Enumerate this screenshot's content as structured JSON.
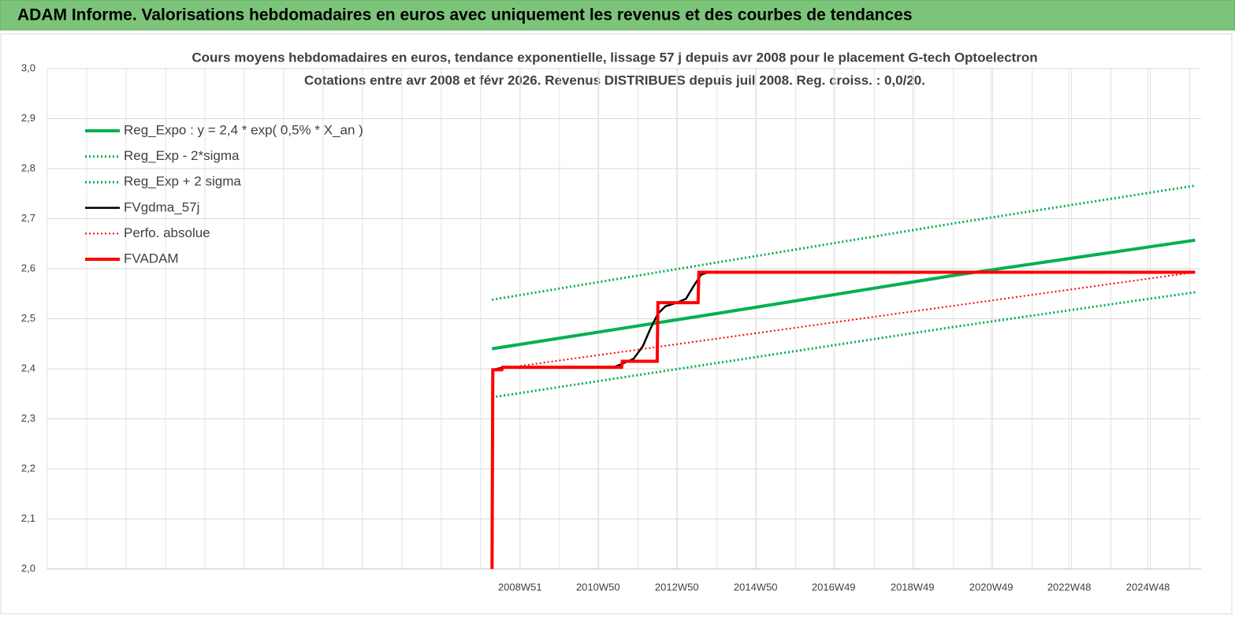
{
  "header": {
    "title": "ADAM Informe. Valorisations hebdomadaires en euros avec uniquement les revenus et des courbes de tendances"
  },
  "chart_data": {
    "type": "line",
    "title": "Cours moyens hebdomadaires en euros, tendance exponentielle, lissage 57 j depuis avr 2008 pour le placement G-tech Optoelectron",
    "subtitle": "Cotations entre avr 2008 et févr 2026. Revenus DISTRIBUES depuis juil 2008. Reg. croiss. : 0,0/20.",
    "xlim": [
      "1996W51",
      "2026W14"
    ],
    "xticks": [
      "2008W51",
      "2010W50",
      "2012W50",
      "2014W50",
      "2016W49",
      "2018W49",
      "2020W49",
      "2022W48",
      "2024W48"
    ],
    "ylim": [
      2.0,
      3.0
    ],
    "yticks": [
      {
        "value": 2.0,
        "label": "2,0"
      },
      {
        "value": 2.1,
        "label": "2,1"
      },
      {
        "value": 2.2,
        "label": "2,2"
      },
      {
        "value": 2.3,
        "label": "2,3"
      },
      {
        "value": 2.4,
        "label": "2,4"
      },
      {
        "value": 2.5,
        "label": "2,5"
      },
      {
        "value": 2.6,
        "label": "2,6"
      },
      {
        "value": 2.7,
        "label": "2,7"
      },
      {
        "value": 2.8,
        "label": "2,8"
      },
      {
        "value": 2.9,
        "label": "2,9"
      },
      {
        "value": 3.0,
        "label": "3,0"
      }
    ],
    "grid": true,
    "legend": "upper left",
    "series": [
      {
        "name": "Reg_Expo : y = 2,4 * exp( 0,5% *  X_an )",
        "color": "#00b050",
        "line_style": "solid",
        "line_width": 4,
        "x": [
          "2008W14",
          "2014W01",
          "2020W01",
          "2026W06"
        ],
        "values": [
          2.44,
          2.511,
          2.587,
          2.657
        ]
      },
      {
        "name": "Reg_Exp - 2*sigma",
        "color": "#00b050",
        "line_style": "dotted",
        "line_width": 3,
        "x": [
          "2008W14",
          "2014W01",
          "2020W01",
          "2026W06"
        ],
        "values": [
          2.343,
          2.412,
          2.484,
          2.553
        ]
      },
      {
        "name": "Reg_Exp + 2 sigma",
        "color": "#00b050",
        "line_style": "dotted",
        "line_width": 3,
        "x": [
          "2008W14",
          "2014W01",
          "2020W01",
          "2026W06"
        ],
        "values": [
          2.538,
          2.613,
          2.691,
          2.766
        ]
      },
      {
        "name": "FVgdma_57j",
        "color": "#000000",
        "line_style": "solid",
        "line_width": 2.5,
        "x": [
          "2008W15",
          "2008W30",
          "2011W20",
          "2011W30",
          "2011W45",
          "2012W05",
          "2012W15",
          "2012W25",
          "2012W35",
          "2012W50",
          "2013W10",
          "2013W20",
          "2013W30",
          "2013W40",
          "2026W06"
        ],
        "values": [
          2.398,
          2.403,
          2.404,
          2.41,
          2.42,
          2.445,
          2.48,
          2.51,
          2.525,
          2.532,
          2.54,
          2.565,
          2.588,
          2.593,
          2.593
        ]
      },
      {
        "name": "Perfo. absolue",
        "color": "#ff0000",
        "line_style": "dotted",
        "line_width": 2,
        "x": [
          "2008W15",
          "2026W06"
        ],
        "values": [
          2.398,
          2.593
        ]
      },
      {
        "name": "FVADAM",
        "color": "#ff0000",
        "line_style": "solid",
        "line_width": 4,
        "x": [
          "2008W14",
          "2008W15",
          "2008W27",
          "2008W28",
          "2011W29",
          "2011W30",
          "2012W24",
          "2012W25",
          "2013W26",
          "2013W27",
          "2026W06"
        ],
        "values": [
          2.0,
          2.398,
          2.398,
          2.403,
          2.403,
          2.415,
          2.415,
          2.532,
          2.532,
          2.593,
          2.593
        ]
      }
    ]
  }
}
